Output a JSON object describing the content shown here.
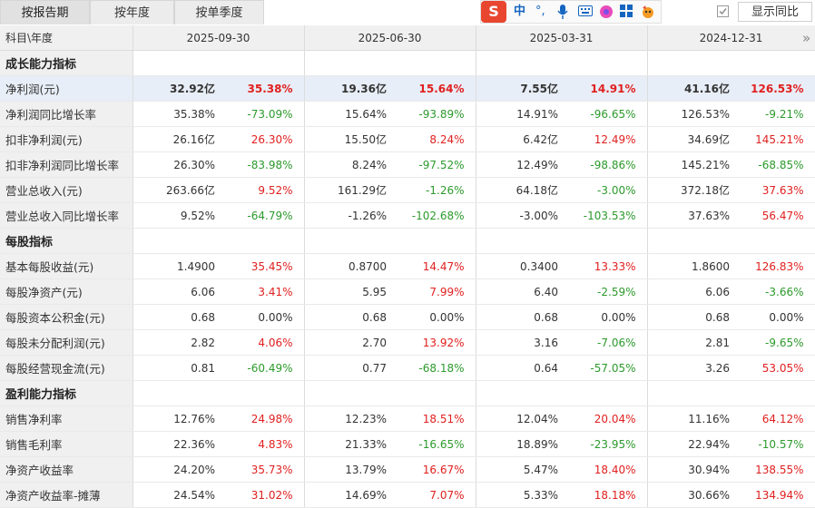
{
  "tabs": [
    {
      "label": "按报告期",
      "active": true
    },
    {
      "label": "按年度",
      "active": false
    },
    {
      "label": "按单季度",
      "active": false
    }
  ],
  "ime_toolbar": {
    "logo": "S",
    "lang": "中",
    "punct": "°,"
  },
  "yoy_toggle": {
    "label": "显示同比",
    "checked": true
  },
  "header": {
    "label": "科目\\年度",
    "periods": [
      "2025-09-30",
      "2025-06-30",
      "2025-03-31",
      "2024-12-31"
    ]
  },
  "colors": {
    "up": "#e02020",
    "down": "#2c9a2c",
    "highlight": "#e8eef7"
  },
  "rows": [
    {
      "section": "成长能力指标"
    },
    {
      "label": "净利润(元)",
      "highlight": true,
      "cells": [
        [
          "32.92亿",
          "35.38%",
          "up"
        ],
        [
          "19.36亿",
          "15.64%",
          "up"
        ],
        [
          "7.55亿",
          "14.91%",
          "up"
        ],
        [
          "41.16亿",
          "126.53%",
          "up"
        ]
      ]
    },
    {
      "label": "净利润同比增长率",
      "cells": [
        [
          "35.38%",
          "-73.09%",
          "down"
        ],
        [
          "15.64%",
          "-93.89%",
          "down"
        ],
        [
          "14.91%",
          "-96.65%",
          "down"
        ],
        [
          "126.53%",
          "-9.21%",
          "down"
        ]
      ]
    },
    {
      "label": "扣非净利润(元)",
      "cells": [
        [
          "26.16亿",
          "26.30%",
          "up"
        ],
        [
          "15.50亿",
          "8.24%",
          "up"
        ],
        [
          "6.42亿",
          "12.49%",
          "up"
        ],
        [
          "34.69亿",
          "145.21%",
          "up"
        ]
      ]
    },
    {
      "label": "扣非净利润同比增长率",
      "cells": [
        [
          "26.30%",
          "-83.98%",
          "down"
        ],
        [
          "8.24%",
          "-97.52%",
          "down"
        ],
        [
          "12.49%",
          "-98.86%",
          "down"
        ],
        [
          "145.21%",
          "-68.85%",
          "down"
        ]
      ]
    },
    {
      "label": "营业总收入(元)",
      "cells": [
        [
          "263.66亿",
          "9.52%",
          "up"
        ],
        [
          "161.29亿",
          "-1.26%",
          "down"
        ],
        [
          "64.18亿",
          "-3.00%",
          "down"
        ],
        [
          "372.18亿",
          "37.63%",
          "up"
        ]
      ]
    },
    {
      "label": "营业总收入同比增长率",
      "cells": [
        [
          "9.52%",
          "-64.79%",
          "down"
        ],
        [
          "-1.26%",
          "-102.68%",
          "down"
        ],
        [
          "-3.00%",
          "-103.53%",
          "down"
        ],
        [
          "37.63%",
          "56.47%",
          "up"
        ]
      ]
    },
    {
      "section": "每股指标"
    },
    {
      "label": "基本每股收益(元)",
      "cells": [
        [
          "1.4900",
          "35.45%",
          "up"
        ],
        [
          "0.8700",
          "14.47%",
          "up"
        ],
        [
          "0.3400",
          "13.33%",
          "up"
        ],
        [
          "1.8600",
          "126.83%",
          "up"
        ]
      ]
    },
    {
      "label": "每股净资产(元)",
      "cells": [
        [
          "6.06",
          "3.41%",
          "up"
        ],
        [
          "5.95",
          "7.99%",
          "up"
        ],
        [
          "6.40",
          "-2.59%",
          "down"
        ],
        [
          "6.06",
          "-3.66%",
          "down"
        ]
      ]
    },
    {
      "label": "每股资本公积金(元)",
      "cells": [
        [
          "0.68",
          "0.00%",
          "neutral"
        ],
        [
          "0.68",
          "0.00%",
          "neutral"
        ],
        [
          "0.68",
          "0.00%",
          "neutral"
        ],
        [
          "0.68",
          "0.00%",
          "neutral"
        ]
      ]
    },
    {
      "label": "每股未分配利润(元)",
      "cells": [
        [
          "2.82",
          "4.06%",
          "up"
        ],
        [
          "2.70",
          "13.92%",
          "up"
        ],
        [
          "3.16",
          "-7.06%",
          "down"
        ],
        [
          "2.81",
          "-9.65%",
          "down"
        ]
      ]
    },
    {
      "label": "每股经营现金流(元)",
      "cells": [
        [
          "0.81",
          "-60.49%",
          "down"
        ],
        [
          "0.77",
          "-68.18%",
          "down"
        ],
        [
          "0.64",
          "-57.05%",
          "down"
        ],
        [
          "3.26",
          "53.05%",
          "up"
        ]
      ]
    },
    {
      "section": "盈利能力指标"
    },
    {
      "label": "销售净利率",
      "cells": [
        [
          "12.76%",
          "24.98%",
          "up"
        ],
        [
          "12.23%",
          "18.51%",
          "up"
        ],
        [
          "12.04%",
          "20.04%",
          "up"
        ],
        [
          "11.16%",
          "64.12%",
          "up"
        ]
      ]
    },
    {
      "label": "销售毛利率",
      "cells": [
        [
          "22.36%",
          "4.83%",
          "up"
        ],
        [
          "21.33%",
          "-16.65%",
          "down"
        ],
        [
          "18.89%",
          "-23.95%",
          "down"
        ],
        [
          "22.94%",
          "-10.57%",
          "down"
        ]
      ]
    },
    {
      "label": "净资产收益率",
      "cells": [
        [
          "24.20%",
          "35.73%",
          "up"
        ],
        [
          "13.79%",
          "16.67%",
          "up"
        ],
        [
          "5.47%",
          "18.40%",
          "up"
        ],
        [
          "30.94%",
          "138.55%",
          "up"
        ]
      ]
    },
    {
      "label": "净资产收益率-摊薄",
      "cells": [
        [
          "24.54%",
          "31.02%",
          "up"
        ],
        [
          "14.69%",
          "7.07%",
          "up"
        ],
        [
          "5.33%",
          "18.18%",
          "up"
        ],
        [
          "30.66%",
          "134.94%",
          "up"
        ]
      ]
    }
  ]
}
